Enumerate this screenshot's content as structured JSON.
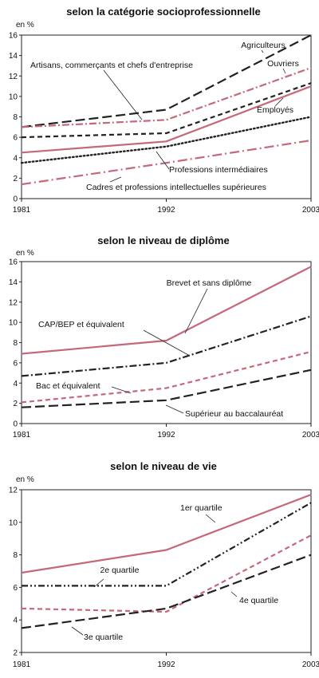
{
  "chart_data": [
    {
      "type": "line",
      "title": "selon la catégorie socioprofessionnelle",
      "ylabel": "en %",
      "x": [
        1981,
        1992,
        2003
      ],
      "x_tick_labels": [
        "1981",
        "1992",
        "2003"
      ],
      "ylim": [
        0,
        16
      ],
      "y_ticks": [
        0,
        2,
        4,
        6,
        8,
        10,
        12,
        14,
        16
      ],
      "grid": false,
      "series": [
        {
          "name": "Agriculteurs",
          "values": [
            7.0,
            8.7,
            16.0
          ],
          "color": "#222222",
          "style": "longdash"
        },
        {
          "name": "Artisans, commerçants et chefs d'entreprise",
          "values": [
            7.0,
            7.7,
            12.8
          ],
          "color": "#c4687a",
          "style": "dashdot"
        },
        {
          "name": "Ouvriers",
          "values": [
            6.0,
            6.4,
            11.3
          ],
          "color": "#222222",
          "style": "dash"
        },
        {
          "name": "Employés",
          "values": [
            4.5,
            5.6,
            11.0
          ],
          "color": "#c4687a",
          "style": "solid"
        },
        {
          "name": "Professions intermédiaires",
          "values": [
            3.5,
            5.1,
            8.0
          ],
          "color": "#222222",
          "style": "dot"
        },
        {
          "name": "Cadres et professions intellectuelles supérieures",
          "values": [
            1.4,
            3.5,
            5.7
          ],
          "color": "#c4687a",
          "style": "longdashdot"
        }
      ]
    },
    {
      "type": "line",
      "title": "selon le niveau de diplôme",
      "ylabel": "en %",
      "x": [
        1981,
        1992,
        2003
      ],
      "x_tick_labels": [
        "1981",
        "1992",
        "2003"
      ],
      "ylim": [
        0,
        16
      ],
      "y_ticks": [
        0,
        2,
        4,
        6,
        8,
        10,
        12,
        14,
        16
      ],
      "grid": false,
      "series": [
        {
          "name": "Brevet et sans diplôme",
          "values": [
            6.9,
            8.2,
            15.5
          ],
          "color": "#c4687a",
          "style": "solid"
        },
        {
          "name": "CAP/BEP et équivalent",
          "values": [
            4.7,
            6.0,
            10.6
          ],
          "color": "#222222",
          "style": "dashdot"
        },
        {
          "name": "Bac et équivalent",
          "values": [
            2.1,
            3.5,
            7.1
          ],
          "color": "#c4687a",
          "style": "dash"
        },
        {
          "name": "Supérieur au baccalauréat",
          "values": [
            1.6,
            2.3,
            5.3
          ],
          "color": "#222222",
          "style": "longdash"
        }
      ]
    },
    {
      "type": "line",
      "title": "selon le niveau de vie",
      "ylabel": "en %",
      "x": [
        1981,
        1992,
        2003
      ],
      "x_tick_labels": [
        "1981",
        "1992",
        "2003"
      ],
      "ylim": [
        2,
        12
      ],
      "y_ticks": [
        2,
        4,
        6,
        8,
        10,
        12
      ],
      "grid": false,
      "series": [
        {
          "name": "1er quartile",
          "values": [
            6.9,
            8.3,
            11.7
          ],
          "color": "#c4687a",
          "style": "solid"
        },
        {
          "name": "2e quartile",
          "values": [
            6.1,
            6.1,
            11.2
          ],
          "color": "#222222",
          "style": "dashdotdot"
        },
        {
          "name": "3e quartile",
          "values": [
            4.7,
            4.5,
            9.2
          ],
          "color": "#c4687a",
          "style": "dash"
        },
        {
          "name": "4e quartile",
          "values": [
            3.5,
            4.7,
            8.0
          ],
          "color": "#222222",
          "style": "longdash"
        }
      ]
    }
  ]
}
